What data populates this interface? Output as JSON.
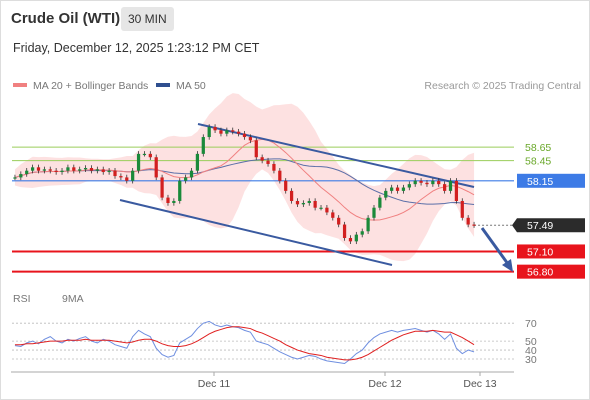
{
  "header": {
    "title": "Crude Oil (WTI)",
    "interval": "30 MIN",
    "datetime": "Friday, December 12, 2025 1:23:12 PM CET"
  },
  "legend": {
    "ma20_label": "MA 20 + Bollinger Bands",
    "ma50_label": "MA 50",
    "attribution": "Research © 2025 Trading Central"
  },
  "rsi_legend": {
    "rsi_label": "RSI",
    "ma_label": "9MA"
  },
  "colors": {
    "bollinger": "#fbc9c9",
    "ma20": "#f08080",
    "ma50": "#5b6fa8",
    "channel": "#3a5aa0",
    "support": "#e8141c",
    "pivot": "#3d7be6",
    "resistance": "#9acd5a",
    "price_tag": "#2b2b2b",
    "rsi": "#6f8fe0",
    "rsi_ma": "#e02020",
    "candle_up": "#1a8a3a",
    "candle_down": "#d21f1f"
  },
  "chart_data": [
    {
      "type": "candlestick",
      "x_ticks": [
        "Dec 11",
        "Dec 12",
        "Dec 13"
      ],
      "levels": [
        {
          "label": "58.65",
          "value": 58.65,
          "kind": "resistance"
        },
        {
          "label": "58.45",
          "value": 58.45,
          "kind": "resistance"
        },
        {
          "label": "58.15",
          "value": 58.15,
          "kind": "pivot"
        },
        {
          "label": "57.49",
          "value": 57.49,
          "kind": "last_price"
        },
        {
          "label": "57.10",
          "value": 57.1,
          "kind": "support"
        },
        {
          "label": "56.80",
          "value": 56.8,
          "kind": "support"
        }
      ],
      "ylim": [
        56.78,
        59.38
      ],
      "close": [
        58.2,
        58.25,
        58.3,
        58.35,
        58.3,
        58.32,
        58.3,
        58.28,
        58.3,
        58.35,
        58.3,
        58.32,
        58.34,
        58.3,
        58.32,
        58.28,
        58.3,
        58.22,
        58.2,
        58.15,
        58.3,
        58.55,
        58.55,
        58.5,
        58.2,
        57.9,
        57.82,
        57.85,
        58.15,
        58.2,
        58.3,
        58.55,
        58.8,
        58.95,
        58.9,
        58.85,
        58.9,
        58.88,
        58.85,
        58.8,
        58.75,
        58.5,
        58.45,
        58.4,
        58.3,
        58.15,
        58.0,
        57.85,
        57.8,
        57.82,
        57.85,
        57.75,
        57.75,
        57.68,
        57.6,
        57.5,
        57.3,
        57.25,
        57.35,
        57.4,
        57.6,
        57.75,
        57.9,
        58.0,
        58.05,
        58.0,
        58.05,
        58.1,
        58.15,
        58.12,
        58.1,
        58.15,
        58.1,
        58.0,
        58.15,
        57.85,
        57.6,
        57.5,
        57.49
      ]
    },
    {
      "type": "line",
      "title": "RSI",
      "x_ticks": [
        "Dec 11",
        "Dec 12",
        "Dec 13"
      ],
      "y_ticks": [
        70,
        50,
        40,
        30
      ],
      "ylim": [
        20,
        78
      ],
      "series": [
        {
          "name": "RSI",
          "values": [
            45,
            44,
            48,
            50,
            47,
            52,
            55,
            50,
            48,
            52,
            50,
            53,
            55,
            50,
            48,
            52,
            50,
            46,
            44,
            42,
            55,
            62,
            58,
            55,
            42,
            35,
            32,
            34,
            48,
            52,
            56,
            64,
            70,
            72,
            68,
            66,
            68,
            66,
            65,
            62,
            60,
            50,
            48,
            46,
            42,
            38,
            35,
            32,
            30,
            32,
            34,
            33,
            30,
            28,
            27,
            26,
            25,
            30,
            36,
            40,
            48,
            54,
            58,
            60,
            62,
            60,
            62,
            63,
            64,
            62,
            60,
            62,
            58,
            52,
            58,
            42,
            36,
            40,
            38
          ]
        },
        {
          "name": "9MA",
          "values": [
            46,
            46,
            47,
            47,
            48,
            49,
            50,
            50,
            50,
            51,
            51,
            51,
            52,
            51,
            51,
            51,
            51,
            50,
            49,
            48,
            49,
            51,
            52,
            52,
            50,
            47,
            45,
            44,
            44,
            45,
            47,
            50,
            54,
            58,
            61,
            63,
            65,
            66,
            66,
            65,
            64,
            61,
            59,
            56,
            53,
            50,
            46,
            43,
            40,
            38,
            36,
            35,
            34,
            32,
            31,
            30,
            29,
            29,
            30,
            32,
            35,
            39,
            43,
            47,
            51,
            54,
            57,
            59,
            61,
            61,
            61,
            62,
            61,
            60,
            60,
            57,
            54,
            50,
            46
          ]
        }
      ]
    }
  ]
}
